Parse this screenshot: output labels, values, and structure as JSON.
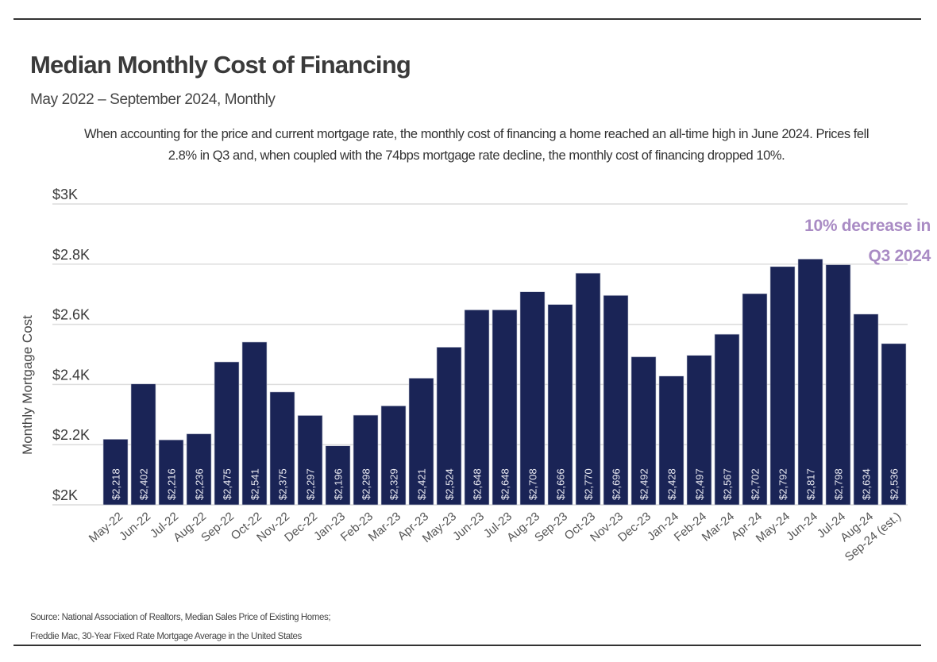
{
  "header": {
    "title": "Median Monthly Cost of Financing",
    "subtitle": "May 2022 – September 2024, Monthly",
    "description": "When accounting for the price and current mortgage rate, the monthly cost of financing a home reached an all-time high in June 2024. Prices fell 2.8% in Q3 and, when coupled with the 74bps mortgage rate decline, the monthly cost of financing dropped 10%."
  },
  "annotation": {
    "line1": "10% decrease in",
    "line2": "Q3 2024",
    "color": "#a98bc4"
  },
  "footer": {
    "source_line1": "Source: National Association of Realtors, Median Sales Price of Existing Homes;",
    "source_line2": "Freddie Mac, 30-Year Fixed Rate Mortgage Average in the United States"
  },
  "chart_data": {
    "type": "bar",
    "title": "Median Monthly Cost of Financing",
    "subtitle": "May 2022 – September 2024, Monthly",
    "xlabel": "",
    "ylabel": "Monthly Mortgage Cost",
    "ylim": [
      2000,
      3000
    ],
    "yticks": [
      2000,
      2200,
      2400,
      2600,
      2800,
      3000
    ],
    "ytick_labels": [
      "$2K",
      "$2.2K",
      "$2.4K",
      "$2.6K",
      "$2.8K",
      "$3K"
    ],
    "grid": true,
    "bar_color": "#1a2456",
    "categories": [
      "May-22",
      "Jun-22",
      "Jul-22",
      "Aug-22",
      "Sep-22",
      "Oct-22",
      "Nov-22",
      "Dec-22",
      "Jan-23",
      "Feb-23",
      "Mar-23",
      "Apr-23",
      "May-23",
      "Jun-23",
      "Jul-23",
      "Aug-23",
      "Sep-23",
      "Oct-23",
      "Nov-23",
      "Dec-23",
      "Jan-24",
      "Feb-24",
      "Mar-24",
      "Apr-24",
      "May-24",
      "Jun-24",
      "Jul-24",
      "Aug-24",
      "Sep-24 (est.)"
    ],
    "values": [
      2218,
      2402,
      2216,
      2236,
      2475,
      2541,
      2375,
      2297,
      2196,
      2298,
      2329,
      2421,
      2524,
      2648,
      2648,
      2708,
      2666,
      2770,
      2696,
      2492,
      2428,
      2497,
      2567,
      2702,
      2792,
      2817,
      2798,
      2634,
      2536
    ],
    "data_labels": [
      "$2,218",
      "$2,402",
      "$2,216",
      "$2,236",
      "$2,475",
      "$2,541",
      "$2,375",
      "$2,297",
      "$2,196",
      "$2,298",
      "$2,329",
      "$2,421",
      "$2,524",
      "$2,648",
      "$2,648",
      "$2,708",
      "$2,666",
      "$2,770",
      "$2,696",
      "$2,492",
      "$2,428",
      "$2,497",
      "$2,567",
      "$2,702",
      "$2,792",
      "$2,817",
      "$2,798",
      "$2,634",
      "$2,536"
    ],
    "annotations": [
      "10% decrease in Q3 2024"
    ]
  }
}
